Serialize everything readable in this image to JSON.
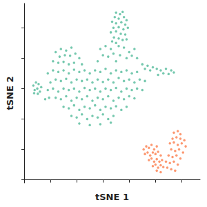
{
  "chart_data": {
    "type": "scatter",
    "xlabel": "tSNE 1",
    "ylabel": "tSNE 2",
    "xlim": [
      0,
      67
    ],
    "ylim": [
      -1,
      58
    ],
    "xticks": [
      10,
      20,
      30,
      40,
      50,
      60
    ],
    "yticks": [
      0,
      10,
      20,
      30,
      40,
      50
    ],
    "tick_labels": false,
    "grid": false,
    "marker": "circle",
    "series": [
      {
        "color": "#66c2a5",
        "values": [
          [
            35,
            55
          ],
          [
            36.5,
            54.5
          ],
          [
            37.5,
            55.2
          ],
          [
            34.5,
            53.5
          ],
          [
            36,
            53
          ],
          [
            38,
            53.5
          ],
          [
            39,
            52.5
          ],
          [
            33.5,
            52
          ],
          [
            35,
            51.5
          ],
          [
            37,
            51.8
          ],
          [
            38.5,
            51
          ],
          [
            34,
            50
          ],
          [
            36,
            50.2
          ],
          [
            37.8,
            49.5
          ],
          [
            39.5,
            50
          ],
          [
            33,
            48.5
          ],
          [
            35,
            48.8
          ],
          [
            36.8,
            48
          ],
          [
            38.5,
            47.8
          ],
          [
            34.2,
            46.8
          ],
          [
            36,
            46.5
          ],
          [
            37.5,
            46
          ],
          [
            39,
            46.2
          ],
          [
            35,
            45
          ],
          [
            33.5,
            45.5
          ],
          [
            12,
            42
          ],
          [
            14,
            43
          ],
          [
            16,
            42.5
          ],
          [
            18,
            43.5
          ],
          [
            13.5,
            40.5
          ],
          [
            15.5,
            41
          ],
          [
            17.5,
            40.8
          ],
          [
            19.5,
            41.5
          ],
          [
            21,
            40
          ],
          [
            11,
            39
          ],
          [
            13,
            38.5
          ],
          [
            15,
            38.8
          ],
          [
            17,
            38
          ],
          [
            19,
            38.5
          ],
          [
            22,
            38
          ],
          [
            29,
            43
          ],
          [
            31,
            44
          ],
          [
            33,
            43
          ],
          [
            36,
            44
          ],
          [
            38,
            43.5
          ],
          [
            40,
            42
          ],
          [
            42,
            43
          ],
          [
            30,
            41
          ],
          [
            32,
            40.5
          ],
          [
            34,
            41.5
          ],
          [
            36.5,
            41
          ],
          [
            39,
            40
          ],
          [
            41,
            40.8
          ],
          [
            43,
            40
          ],
          [
            28,
            39
          ],
          [
            35,
            39
          ],
          [
            45,
            38
          ],
          [
            47,
            37.5
          ],
          [
            49,
            37
          ],
          [
            50.5,
            36.5
          ],
          [
            52,
            36
          ],
          [
            54,
            36.5
          ],
          [
            56,
            36
          ],
          [
            53,
            35
          ],
          [
            51,
            34.5
          ],
          [
            55,
            34.8
          ],
          [
            48,
            36
          ],
          [
            46,
            36.5
          ],
          [
            57,
            35.3
          ],
          [
            9,
            35
          ],
          [
            11,
            36
          ],
          [
            13,
            35.5
          ],
          [
            15,
            36
          ],
          [
            17,
            35
          ],
          [
            19,
            36.2
          ],
          [
            21,
            35.5
          ],
          [
            23,
            36
          ],
          [
            25,
            35
          ],
          [
            27,
            36
          ],
          [
            29,
            35.5
          ],
          [
            31,
            36.5
          ],
          [
            33,
            35
          ],
          [
            35,
            36
          ],
          [
            37,
            35.5
          ],
          [
            39,
            36
          ],
          [
            41,
            35
          ],
          [
            43,
            35.5
          ],
          [
            10,
            32
          ],
          [
            12,
            33
          ],
          [
            14,
            32.5
          ],
          [
            16,
            33.2
          ],
          [
            18,
            32
          ],
          [
            20,
            33
          ],
          [
            22,
            32.5
          ],
          [
            24,
            33
          ],
          [
            26,
            32
          ],
          [
            28,
            33
          ],
          [
            30,
            32.2
          ],
          [
            32,
            33
          ],
          [
            34,
            32
          ],
          [
            36,
            33.5
          ],
          [
            38,
            32.5
          ],
          [
            40,
            33
          ],
          [
            42,
            32
          ],
          [
            44,
            33
          ],
          [
            46,
            32.5
          ],
          [
            9,
            29.5
          ],
          [
            11,
            30
          ],
          [
            13,
            29
          ],
          [
            15,
            30
          ],
          [
            17,
            29.5
          ],
          [
            19,
            30
          ],
          [
            21,
            29
          ],
          [
            23,
            30.2
          ],
          [
            25,
            29.5
          ],
          [
            27,
            30
          ],
          [
            29,
            29
          ],
          [
            31,
            30
          ],
          [
            33,
            29.5
          ],
          [
            35,
            30.2
          ],
          [
            37,
            29
          ],
          [
            39,
            30
          ],
          [
            41,
            29.5
          ],
          [
            43,
            30
          ],
          [
            45,
            29.5
          ],
          [
            12,
            27
          ],
          [
            14,
            26.5
          ],
          [
            16,
            27.5
          ],
          [
            18,
            26
          ],
          [
            20,
            27
          ],
          [
            22,
            26.5
          ],
          [
            24,
            27.5
          ],
          [
            26,
            26
          ],
          [
            28,
            27
          ],
          [
            30,
            26.5
          ],
          [
            32,
            27.5
          ],
          [
            34,
            26
          ],
          [
            36,
            27
          ],
          [
            38,
            26.5
          ],
          [
            40,
            27.5
          ],
          [
            42,
            26.8
          ],
          [
            15,
            24
          ],
          [
            17,
            23.5
          ],
          [
            19,
            24.5
          ],
          [
            21,
            23
          ],
          [
            23,
            24
          ],
          [
            25,
            23.5
          ],
          [
            27,
            24.5
          ],
          [
            29,
            23
          ],
          [
            31,
            24
          ],
          [
            33,
            23.5
          ],
          [
            35,
            24.2
          ],
          [
            37,
            23
          ],
          [
            39,
            24
          ],
          [
            18,
            21
          ],
          [
            20,
            20.5
          ],
          [
            22,
            21.5
          ],
          [
            24,
            20
          ],
          [
            26,
            21
          ],
          [
            28,
            20.5
          ],
          [
            30,
            21.5
          ],
          [
            32,
            20
          ],
          [
            34,
            21
          ],
          [
            21,
            18.5
          ],
          [
            25,
            18
          ],
          [
            29,
            18.3
          ],
          [
            33,
            18.8
          ],
          [
            3.5,
            31
          ],
          [
            4.5,
            32
          ],
          [
            5.5,
            31.5
          ],
          [
            6.5,
            30.5
          ],
          [
            4,
            29.5
          ],
          [
            5,
            30
          ],
          [
            6,
            29
          ],
          [
            3.8,
            28.5
          ],
          [
            5.2,
            28.3
          ],
          [
            8,
            26.5
          ],
          [
            9.5,
            27
          ]
        ]
      },
      {
        "color": "#fc8d62",
        "values": [
          [
            45.5,
            10
          ],
          [
            46.5,
            11
          ],
          [
            47.5,
            10.5
          ],
          [
            48.5,
            11.5
          ],
          [
            49.5,
            10
          ],
          [
            50.5,
            11
          ],
          [
            46,
            8.5
          ],
          [
            47,
            9
          ],
          [
            48,
            8
          ],
          [
            49,
            9
          ],
          [
            50,
            8.5
          ],
          [
            51,
            9.2
          ],
          [
            52,
            8
          ],
          [
            47.5,
            6.5
          ],
          [
            48.5,
            7
          ],
          [
            49.5,
            6
          ],
          [
            50.5,
            6.8
          ],
          [
            51.5,
            6
          ],
          [
            52.5,
            6.5
          ],
          [
            49,
            4.5
          ],
          [
            50,
            5
          ],
          [
            51,
            4
          ],
          [
            52,
            4.8
          ],
          [
            53,
            4.2
          ],
          [
            50.5,
            3
          ],
          [
            52,
            2.5
          ],
          [
            57,
            15.5
          ],
          [
            58.5,
            16
          ],
          [
            59.5,
            15
          ],
          [
            56.5,
            13.5
          ],
          [
            58,
            14
          ],
          [
            59.5,
            13.5
          ],
          [
            61,
            13
          ],
          [
            55.5,
            12
          ],
          [
            57,
            12.3
          ],
          [
            58.5,
            11.5
          ],
          [
            60,
            12
          ],
          [
            61.5,
            11
          ],
          [
            56,
            10
          ],
          [
            57.5,
            9.5
          ],
          [
            59,
            10
          ],
          [
            60.5,
            9
          ],
          [
            55,
            8
          ],
          [
            56.5,
            7.5
          ],
          [
            58,
            8
          ],
          [
            59.5,
            7
          ],
          [
            54,
            6
          ],
          [
            55.5,
            5.5
          ],
          [
            57,
            6
          ],
          [
            58.5,
            5
          ],
          [
            54.5,
            4
          ],
          [
            56,
            3.5
          ],
          [
            57.5,
            3
          ]
        ]
      }
    ]
  }
}
